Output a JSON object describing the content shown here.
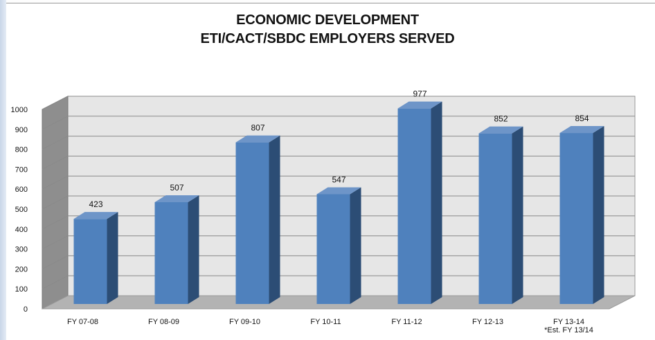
{
  "chart_data": {
    "type": "bar",
    "title": [
      "ECONOMIC DEVELOPMENT",
      "ETI/CACT/SBDC EMPLOYERS SERVED"
    ],
    "categories": [
      "FY 07-08",
      "FY 08-09",
      "FY 09-10",
      "FY 10-11",
      "FY 11-12",
      "FY 12-13",
      "FY 13-14"
    ],
    "values": [
      423,
      507,
      807,
      547,
      977,
      852,
      854
    ],
    "category_notes": [
      "",
      "",
      "",
      "",
      "",
      "",
      "*Est. FY 13/14"
    ],
    "ylim": [
      0,
      1000
    ],
    "yticks": [
      0,
      100,
      200,
      300,
      400,
      500,
      600,
      700,
      800,
      900,
      1000
    ],
    "grid": true,
    "legend": "none",
    "style": "3d-column",
    "colors": {
      "bar_front": "#4f81bd",
      "bar_side": "#2c4d75",
      "bar_top": "#6e95c8",
      "wall": "#e6e6e6",
      "floor": "#b3b3b3",
      "gridline": "#8a8a8a"
    }
  }
}
